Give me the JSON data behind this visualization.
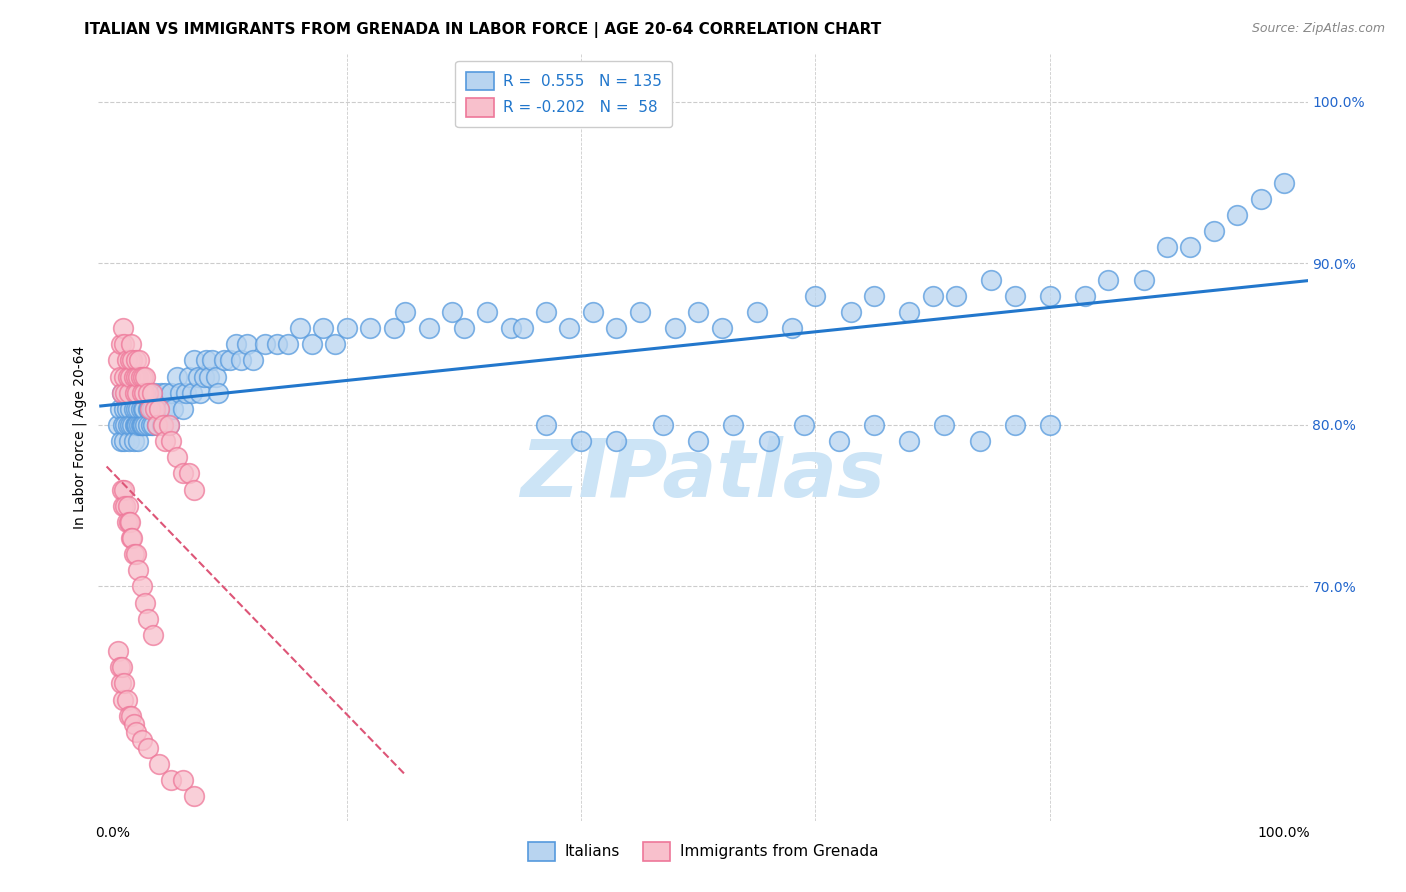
{
  "title": "ITALIAN VS IMMIGRANTS FROM GRENADA IN LABOR FORCE | AGE 20-64 CORRELATION CHART",
  "source": "Source: ZipAtlas.com",
  "ylabel": "In Labor Force | Age 20-64",
  "y_tick_labels_right": [
    "70.0%",
    "80.0%",
    "90.0%",
    "100.0%"
  ],
  "y_tick_positions_right": [
    0.7,
    0.8,
    0.9,
    1.0
  ],
  "legend_italian_R": "0.555",
  "legend_italian_N": "135",
  "legend_grenada_R": "-0.202",
  "legend_grenada_N": "58",
  "blue_face_color": "#b8d4f0",
  "blue_edge_color": "#5599dd",
  "pink_face_color": "#f8c0cc",
  "pink_edge_color": "#ee7799",
  "blue_line_color": "#2277cc",
  "pink_line_color": "#dd5577",
  "watermark": "ZIPatlas",
  "watermark_color": "#cce4f6",
  "title_fontsize": 11,
  "tick_label_color": "#2266cc",
  "italians_x": [
    0.005,
    0.006,
    0.007,
    0.008,
    0.009,
    0.01,
    0.01,
    0.011,
    0.012,
    0.013,
    0.014,
    0.015,
    0.015,
    0.016,
    0.017,
    0.018,
    0.018,
    0.019,
    0.02,
    0.02,
    0.021,
    0.021,
    0.022,
    0.022,
    0.023,
    0.023,
    0.024,
    0.024,
    0.025,
    0.025,
    0.026,
    0.026,
    0.027,
    0.028,
    0.029,
    0.03,
    0.03,
    0.031,
    0.032,
    0.033,
    0.034,
    0.035,
    0.036,
    0.037,
    0.038,
    0.04,
    0.041,
    0.042,
    0.043,
    0.045,
    0.046,
    0.048,
    0.05,
    0.052,
    0.055,
    0.058,
    0.06,
    0.063,
    0.065,
    0.068,
    0.07,
    0.073,
    0.075,
    0.078,
    0.08,
    0.082,
    0.085,
    0.088,
    0.09,
    0.095,
    0.1,
    0.105,
    0.11,
    0.115,
    0.12,
    0.13,
    0.14,
    0.15,
    0.16,
    0.17,
    0.18,
    0.19,
    0.2,
    0.22,
    0.24,
    0.25,
    0.27,
    0.29,
    0.3,
    0.32,
    0.34,
    0.35,
    0.37,
    0.39,
    0.41,
    0.43,
    0.45,
    0.48,
    0.5,
    0.52,
    0.55,
    0.58,
    0.6,
    0.63,
    0.65,
    0.68,
    0.7,
    0.72,
    0.75,
    0.77,
    0.8,
    0.83,
    0.85,
    0.88,
    0.9,
    0.92,
    0.94,
    0.96,
    0.98,
    1.0,
    0.37,
    0.4,
    0.43,
    0.47,
    0.5,
    0.53,
    0.56,
    0.59,
    0.62,
    0.65,
    0.68,
    0.71,
    0.74,
    0.77,
    0.8
  ],
  "italians_y": [
    0.8,
    0.81,
    0.79,
    0.82,
    0.8,
    0.81,
    0.79,
    0.8,
    0.81,
    0.8,
    0.79,
    0.81,
    0.8,
    0.82,
    0.8,
    0.81,
    0.79,
    0.8,
    0.81,
    0.8,
    0.82,
    0.8,
    0.81,
    0.79,
    0.8,
    0.82,
    0.8,
    0.81,
    0.8,
    0.82,
    0.81,
    0.8,
    0.81,
    0.8,
    0.82,
    0.81,
    0.8,
    0.81,
    0.82,
    0.8,
    0.81,
    0.8,
    0.82,
    0.81,
    0.8,
    0.81,
    0.82,
    0.8,
    0.81,
    0.82,
    0.81,
    0.8,
    0.82,
    0.81,
    0.83,
    0.82,
    0.81,
    0.82,
    0.83,
    0.82,
    0.84,
    0.83,
    0.82,
    0.83,
    0.84,
    0.83,
    0.84,
    0.83,
    0.82,
    0.84,
    0.84,
    0.85,
    0.84,
    0.85,
    0.84,
    0.85,
    0.85,
    0.85,
    0.86,
    0.85,
    0.86,
    0.85,
    0.86,
    0.86,
    0.86,
    0.87,
    0.86,
    0.87,
    0.86,
    0.87,
    0.86,
    0.86,
    0.87,
    0.86,
    0.87,
    0.86,
    0.87,
    0.86,
    0.87,
    0.86,
    0.87,
    0.86,
    0.88,
    0.87,
    0.88,
    0.87,
    0.88,
    0.88,
    0.89,
    0.88,
    0.88,
    0.88,
    0.89,
    0.89,
    0.91,
    0.91,
    0.92,
    0.93,
    0.94,
    0.95,
    0.8,
    0.79,
    0.79,
    0.8,
    0.79,
    0.8,
    0.79,
    0.8,
    0.79,
    0.8,
    0.79,
    0.8,
    0.79,
    0.8,
    0.8
  ],
  "grenada_x": [
    0.005,
    0.006,
    0.007,
    0.008,
    0.009,
    0.01,
    0.01,
    0.011,
    0.012,
    0.013,
    0.014,
    0.015,
    0.015,
    0.016,
    0.017,
    0.018,
    0.019,
    0.02,
    0.02,
    0.021,
    0.022,
    0.023,
    0.024,
    0.025,
    0.026,
    0.027,
    0.028,
    0.03,
    0.032,
    0.034,
    0.036,
    0.038,
    0.04,
    0.043,
    0.045,
    0.048,
    0.05,
    0.055,
    0.06,
    0.065,
    0.07,
    0.008,
    0.009,
    0.01,
    0.011,
    0.012,
    0.013,
    0.014,
    0.015,
    0.016,
    0.017,
    0.018,
    0.02,
    0.022,
    0.025,
    0.028,
    0.03,
    0.035
  ],
  "grenada_y": [
    0.84,
    0.83,
    0.85,
    0.82,
    0.86,
    0.83,
    0.85,
    0.82,
    0.84,
    0.83,
    0.82,
    0.84,
    0.83,
    0.85,
    0.84,
    0.83,
    0.82,
    0.84,
    0.83,
    0.82,
    0.83,
    0.84,
    0.83,
    0.82,
    0.83,
    0.82,
    0.83,
    0.82,
    0.81,
    0.82,
    0.81,
    0.8,
    0.81,
    0.8,
    0.79,
    0.8,
    0.79,
    0.78,
    0.77,
    0.77,
    0.76,
    0.76,
    0.75,
    0.76,
    0.75,
    0.74,
    0.75,
    0.74,
    0.74,
    0.73,
    0.73,
    0.72,
    0.72,
    0.71,
    0.7,
    0.69,
    0.68,
    0.67
  ],
  "grenada_low_x": [
    0.005,
    0.006,
    0.007,
    0.008,
    0.009,
    0.01,
    0.012,
    0.014,
    0.016,
    0.018,
    0.02,
    0.025,
    0.03,
    0.04,
    0.05,
    0.06,
    0.07
  ],
  "grenada_low_y": [
    0.66,
    0.65,
    0.64,
    0.65,
    0.63,
    0.64,
    0.63,
    0.62,
    0.62,
    0.615,
    0.61,
    0.605,
    0.6,
    0.59,
    0.58,
    0.58,
    0.57
  ]
}
